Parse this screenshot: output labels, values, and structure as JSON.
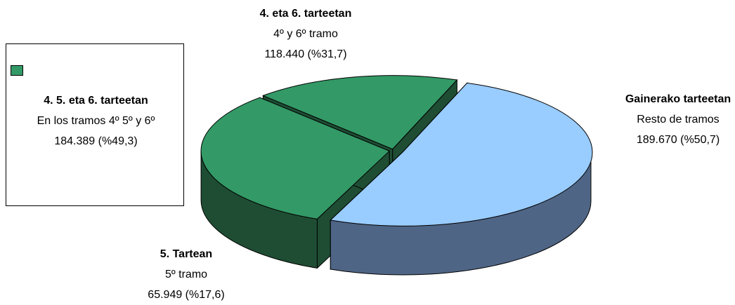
{
  "chart_data": {
    "type": "pie",
    "categories": [
      "Gainerako tarteetan",
      "4. eta 6. tarteetan",
      "5. Tartean"
    ],
    "sublabels": [
      "Resto de tramos",
      "4º y 6º tramo",
      "5º tramo"
    ],
    "values": [
      189670,
      118440,
      65949
    ],
    "value_labels": [
      "189.670 (%50,7)",
      "118.440 (%31,7)",
      "65.949 (%17,6)"
    ],
    "colors": [
      "#99ccff",
      "#339966",
      "#339966"
    ],
    "side_colors": [
      "#4f6585",
      "#1e4d33",
      "#1e4d33"
    ],
    "legend": {
      "title": "4. 5. eta 6. tarteetan",
      "text": "En los tramos 4º 5º y 6º",
      "value_label": "184.389  (%49,3)",
      "color": "#339966"
    }
  }
}
